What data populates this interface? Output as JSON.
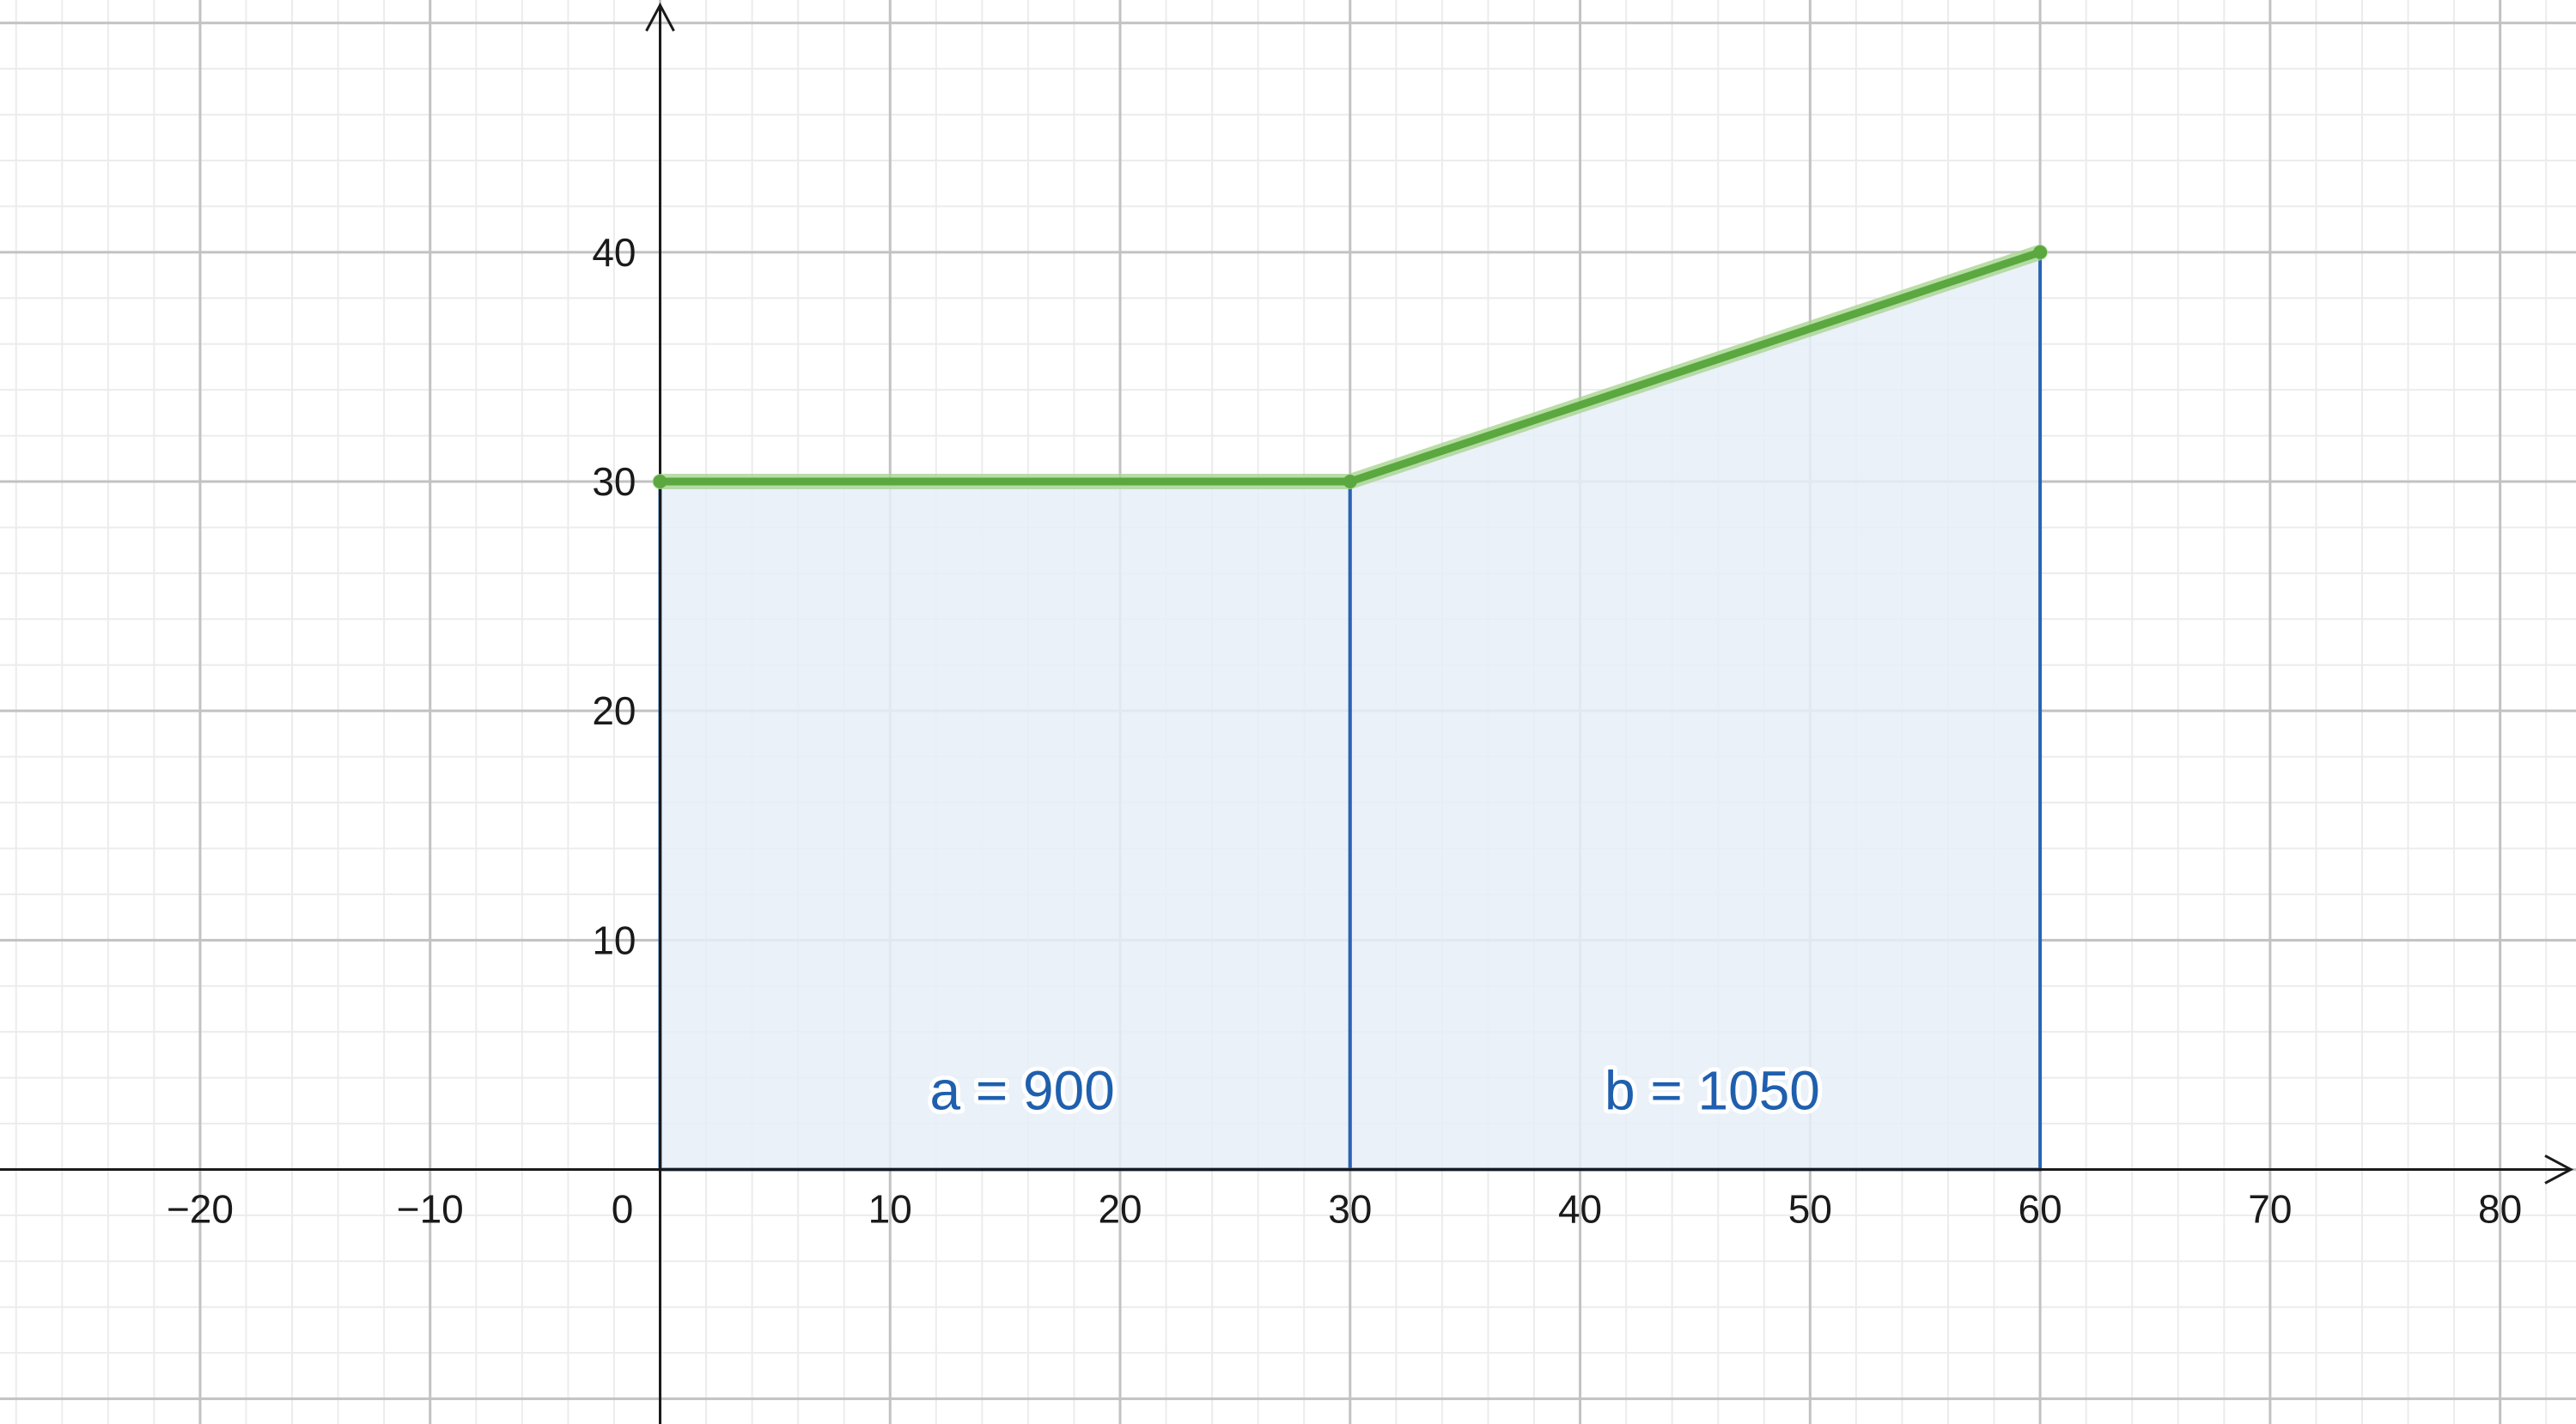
{
  "chart_data": {
    "type": "area",
    "title": "",
    "xlabel": "",
    "ylabel": "",
    "xlim": [
      -28.7,
      83.3
    ],
    "ylim": [
      -11.1,
      51
    ],
    "grid": true,
    "x_ticks": [
      -20,
      -10,
      10,
      20,
      30,
      40,
      50,
      60,
      70,
      80
    ],
    "x_tick_labels": [
      "−20",
      "−10",
      "10",
      "20",
      "30",
      "40",
      "50",
      "60",
      "70",
      "80"
    ],
    "y_ticks": [
      10,
      20,
      30,
      40
    ],
    "y_tick_labels": [
      "10",
      "20",
      "30",
      "40"
    ],
    "origin_label": "0",
    "series": [
      {
        "points": [
          [
            0,
            30
          ],
          [
            30,
            30
          ],
          [
            60,
            40
          ]
        ],
        "color": "#5aa83f"
      }
    ],
    "regions": [
      {
        "name": "a",
        "label": "a = 900",
        "x_from": 0,
        "x_to": 30,
        "value": 900
      },
      {
        "name": "b",
        "label": "b = 1050",
        "x_from": 30,
        "x_to": 60,
        "value": 1050
      }
    ],
    "colors": {
      "region_fill": "#e6eff8",
      "region_stroke": "#2b63b3",
      "region_label": "#1f5fae",
      "curve": "#5aa83f",
      "curve_halo": "#a9d591",
      "axis": "#1a1a1a",
      "grid_major": "#c2c2c2",
      "grid_minor": "#ececec"
    }
  }
}
